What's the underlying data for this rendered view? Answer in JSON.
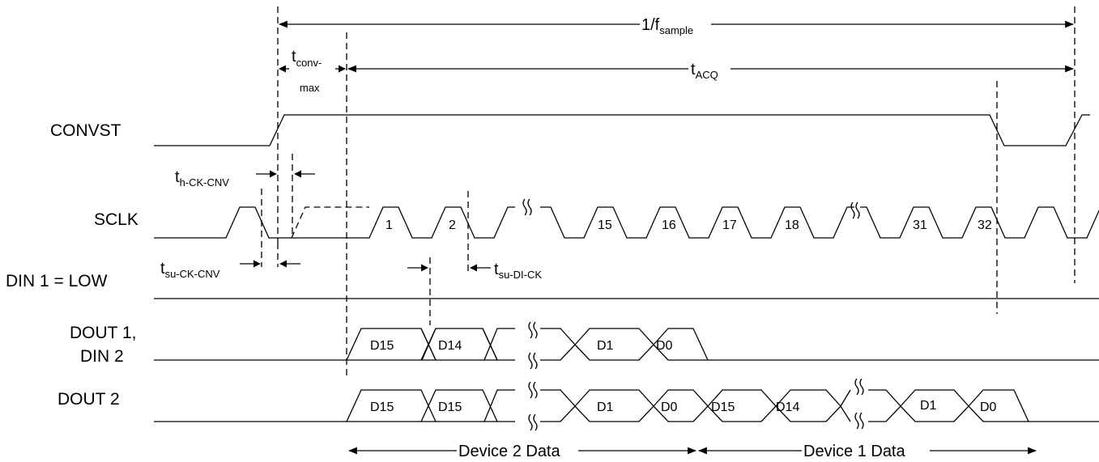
{
  "signals": {
    "convst": "CONVST",
    "sclk": "SCLK",
    "din1": "DIN 1 = LOW",
    "dout1_line1": "DOUT 1,",
    "dout1_line2": "DIN 2",
    "dout2": "DOUT 2"
  },
  "timing": {
    "period_main": "1/f",
    "period_sub": "sample",
    "tconv_main": "t",
    "tconv_sub": "conv-",
    "tconv_sub2": "max",
    "tacq_main": "t",
    "tacq_sub": "ACQ",
    "th_main": "t",
    "th_sub": "h-CK-CNV",
    "tsu_main": "t",
    "tsu_sub": "su-CK-CNV",
    "tsudi_main": "t",
    "tsudi_sub": "su-DI-CK"
  },
  "clock_numbers": [
    "1",
    "2",
    "15",
    "16",
    "17",
    "18",
    "31",
    "32"
  ],
  "dout1_bits": [
    "D15",
    "D14",
    "D1",
    "D0"
  ],
  "dout2_bits": [
    "D15",
    "D15",
    "D1",
    "D0",
    "D15",
    "D14",
    "D1",
    "D0"
  ],
  "ranges": {
    "device2": "Device 2 Data",
    "device1": "Device 1 Data"
  }
}
